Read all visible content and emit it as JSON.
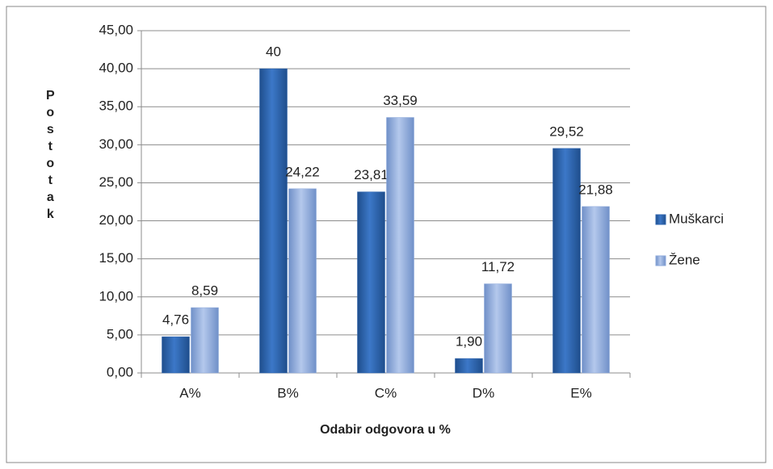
{
  "chart_data": {
    "type": "bar",
    "x_label": "Odabir odgovora u %",
    "y_label": "Postotak",
    "categories": [
      "A%",
      "B%",
      "C%",
      "D%",
      "E%"
    ],
    "series": [
      {
        "name": "Muškarci",
        "color": "#2f64ae",
        "values": [
          4.76,
          40,
          23.81,
          1.9,
          29.52
        ],
        "value_labels": [
          "4,76",
          "40",
          "23,81",
          "1,90",
          "29,52"
        ]
      },
      {
        "name": "Žene",
        "color": "#8eaadb",
        "values": [
          8.59,
          24.22,
          33.59,
          11.72,
          21.88
        ],
        "value_labels": [
          "8,59",
          "24,22",
          "33,59",
          "11,72",
          "21,88"
        ]
      }
    ],
    "ylim": [
      0,
      45
    ],
    "yticks": [
      {
        "value": 0,
        "label": "0,00"
      },
      {
        "value": 5,
        "label": "5,00"
      },
      {
        "value": 10,
        "label": "10,00"
      },
      {
        "value": 15,
        "label": "15,00"
      },
      {
        "value": 20,
        "label": "20,00"
      },
      {
        "value": 25,
        "label": "25,00"
      },
      {
        "value": 30,
        "label": "30,00"
      },
      {
        "value": 35,
        "label": "35,00"
      },
      {
        "value": 40,
        "label": "40,00"
      },
      {
        "value": 45,
        "label": "45,00"
      }
    ],
    "grid": true,
    "legend": "right"
  }
}
